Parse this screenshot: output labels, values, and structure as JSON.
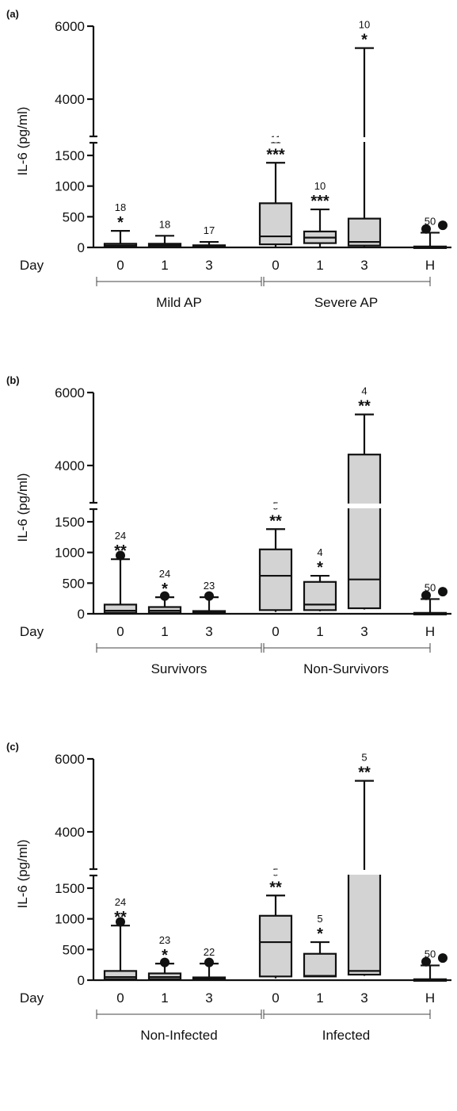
{
  "chart_data": [
    {
      "type": "box",
      "panel_label": "(a)",
      "ylabel": "IL-6 (pg/ml)",
      "xlabel": "Day",
      "y_axis_break": [
        1500,
        4000
      ],
      "y_ticks_lower": [
        0,
        500,
        1000,
        1500
      ],
      "y_ticks_upper": [
        4000,
        6000
      ],
      "groups": [
        "Mild AP",
        "Severe AP"
      ],
      "categories": [
        {
          "label": "0",
          "group": "Mild AP",
          "fill": "#d3d3d3",
          "min": 0,
          "q1": 5,
          "median": 30,
          "q3": 60,
          "max": 270,
          "outliers": [],
          "n": "18",
          "significance": "*"
        },
        {
          "label": "1",
          "group": "Mild AP",
          "fill": "#d3d3d3",
          "min": 0,
          "q1": 10,
          "median": 35,
          "q3": 60,
          "max": 190,
          "outliers": [],
          "n": "18",
          "significance": ""
        },
        {
          "label": "3",
          "group": "Mild AP",
          "fill": "#d3d3d3",
          "min": 0,
          "q1": 5,
          "median": 15,
          "q3": 35,
          "max": 90,
          "outliers": [],
          "n": "17",
          "significance": ""
        },
        {
          "label": "0",
          "group": "Severe AP",
          "fill": "#d3d3d3",
          "min": 0,
          "q1": 50,
          "median": 180,
          "q3": 720,
          "max": 1380,
          "outliers": [],
          "n": "11",
          "significance": "***"
        },
        {
          "label": "1",
          "group": "Severe AP",
          "fill": "#d3d3d3",
          "min": 0,
          "q1": 70,
          "median": 160,
          "q3": 260,
          "max": 620,
          "outliers": [],
          "n": "10",
          "significance": "***"
        },
        {
          "label": "3",
          "group": "Severe AP",
          "fill": "#d3d3d3",
          "min": 0,
          "q1": 30,
          "median": 90,
          "q3": 470,
          "max": 5400,
          "outliers": [],
          "n": "10",
          "significance": "*"
        },
        {
          "label": "H",
          "group": "",
          "fill": "#d3d3d3",
          "min": 0,
          "q1": 0,
          "median": 10,
          "q3": 15,
          "max": 240,
          "outliers": [
            300,
            360
          ],
          "n": "50",
          "significance": ""
        }
      ]
    },
    {
      "type": "box",
      "panel_label": "(b)",
      "ylabel": "IL-6 (pg/ml)",
      "xlabel": "Day",
      "y_axis_break": [
        1500,
        4000
      ],
      "y_ticks_lower": [
        0,
        500,
        1000,
        1500
      ],
      "y_ticks_upper": [
        4000,
        6000
      ],
      "groups": [
        "Survivors",
        "Non-Survivors"
      ],
      "categories": [
        {
          "label": "0",
          "group": "Survivors",
          "fill": "#ffffff",
          "min": 0,
          "q1": 15,
          "median": 50,
          "q3": 150,
          "max": 890,
          "outliers": [
            950
          ],
          "n": "24",
          "significance": "**"
        },
        {
          "label": "1",
          "group": "Survivors",
          "fill": "#ffffff",
          "min": 0,
          "q1": 15,
          "median": 50,
          "q3": 110,
          "max": 270,
          "outliers": [
            290
          ],
          "n": "24",
          "significance": "*"
        },
        {
          "label": "3",
          "group": "Survivors",
          "fill": "#ffffff",
          "min": 0,
          "q1": 5,
          "median": 20,
          "q3": 45,
          "max": 270,
          "outliers": [
            290
          ],
          "n": "23",
          "significance": ""
        },
        {
          "label": "0",
          "group": "Non-Survivors",
          "fill": "#d3d3d3",
          "min": 30,
          "q1": 60,
          "median": 620,
          "q3": 1050,
          "max": 1380,
          "outliers": [],
          "n": "5",
          "significance": "**"
        },
        {
          "label": "1",
          "group": "Non-Survivors",
          "fill": "#d3d3d3",
          "min": 40,
          "q1": 60,
          "median": 150,
          "q3": 520,
          "max": 620,
          "outliers": [],
          "n": "4",
          "significance": "*"
        },
        {
          "label": "3",
          "group": "Non-Survivors",
          "fill": "#d3d3d3",
          "min": 70,
          "q1": 90,
          "median": 560,
          "q3": 4300,
          "max": 5400,
          "outliers": [],
          "n": "4",
          "significance": "**"
        },
        {
          "label": "H",
          "group": "",
          "fill": "#d3d3d3",
          "min": 0,
          "q1": 0,
          "median": 10,
          "q3": 15,
          "max": 240,
          "outliers": [
            300,
            360
          ],
          "n": "50",
          "significance": ""
        }
      ]
    },
    {
      "type": "box",
      "panel_label": "(c)",
      "ylabel": "IL-6 (pg/ml)",
      "xlabel": "Day",
      "y_axis_break": [
        1500,
        4000
      ],
      "y_ticks_lower": [
        0,
        500,
        1000,
        1500
      ],
      "y_ticks_upper": [
        4000,
        6000
      ],
      "groups": [
        "Non-Infected",
        "Infected"
      ],
      "categories": [
        {
          "label": "0",
          "group": "Non-Infected",
          "fill": "#ffffff",
          "min": 0,
          "q1": 15,
          "median": 50,
          "q3": 150,
          "max": 890,
          "outliers": [
            950
          ],
          "n": "24",
          "significance": "**"
        },
        {
          "label": "1",
          "group": "Non-Infected",
          "fill": "#ffffff",
          "min": 0,
          "q1": 15,
          "median": 50,
          "q3": 110,
          "max": 270,
          "outliers": [
            290
          ],
          "n": "23",
          "significance": "*"
        },
        {
          "label": "3",
          "group": "Non-Infected",
          "fill": "#ffffff",
          "min": 0,
          "q1": 5,
          "median": 20,
          "q3": 45,
          "max": 270,
          "outliers": [
            290
          ],
          "n": "22",
          "significance": ""
        },
        {
          "label": "0",
          "group": "Infected",
          "fill": "#d3d3d3",
          "min": 30,
          "q1": 60,
          "median": 620,
          "q3": 1050,
          "max": 1380,
          "outliers": [],
          "n": "5",
          "significance": "**"
        },
        {
          "label": "1",
          "group": "Infected",
          "fill": "#d3d3d3",
          "min": 50,
          "q1": 60,
          "median": 70,
          "q3": 430,
          "max": 620,
          "outliers": [],
          "n": "5",
          "significance": "*"
        },
        {
          "label": "3",
          "group": "Infected",
          "fill": "#d3d3d3",
          "min": 70,
          "q1": 90,
          "median": 150,
          "q3": 3100,
          "max": 5400,
          "outliers": [],
          "n": "5",
          "significance": "**"
        },
        {
          "label": "H",
          "group": "",
          "fill": "#d3d3d3",
          "min": 0,
          "q1": 0,
          "median": 10,
          "q3": 15,
          "max": 240,
          "outliers": [
            300,
            360
          ],
          "n": "50",
          "significance": ""
        }
      ]
    }
  ]
}
